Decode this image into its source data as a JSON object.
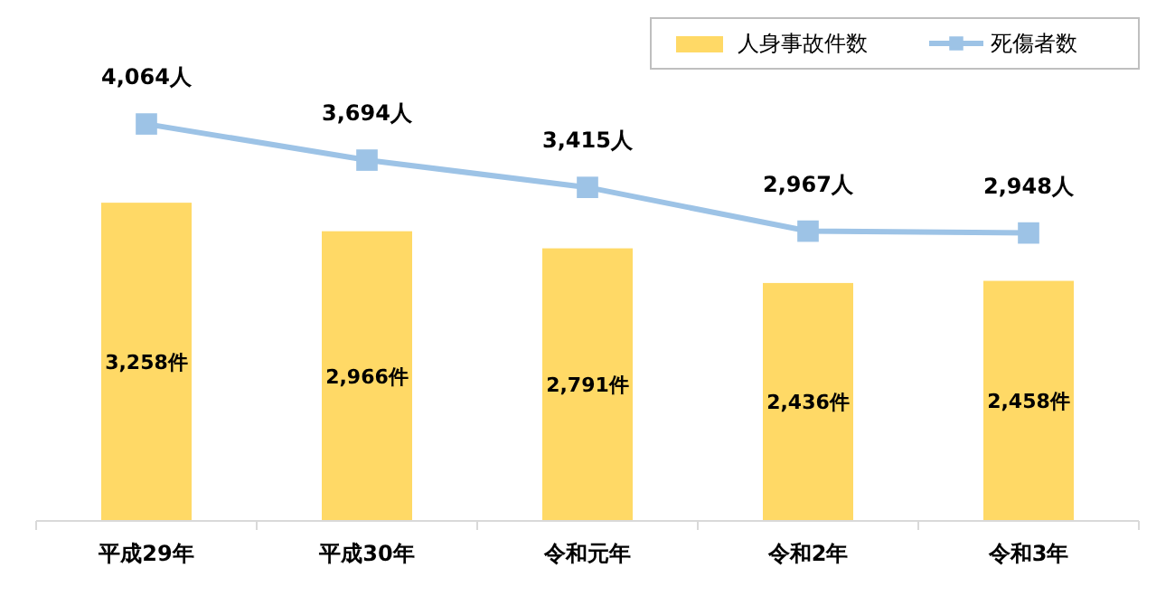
{
  "chart_data": {
    "type": "bar",
    "categories": [
      "平成29年",
      "平成30年",
      "令和元年",
      "令和2年",
      "令和3年"
    ],
    "ylim": [
      0,
      5000
    ],
    "tick_labels": "x",
    "legend": "top right",
    "marker": "square",
    "line_style": "solid",
    "series": [
      {
        "name": "人身事故件数",
        "color": "#ffd966",
        "values": [
          3258,
          2966,
          2791,
          2436,
          2458
        ],
        "value_labels": [
          "3,258件",
          "2,966件",
          "2,791件",
          "2,436件",
          "2,458件"
        ]
      },
      {
        "name": "死傷者数",
        "type": "line",
        "color": "#9dc3e6",
        "values": [
          4064,
          3694,
          3415,
          2967,
          2948
        ],
        "value_labels": [
          "4,064人",
          "3,694人",
          "3,415人",
          "2,967人",
          "2,948人"
        ]
      }
    ]
  }
}
